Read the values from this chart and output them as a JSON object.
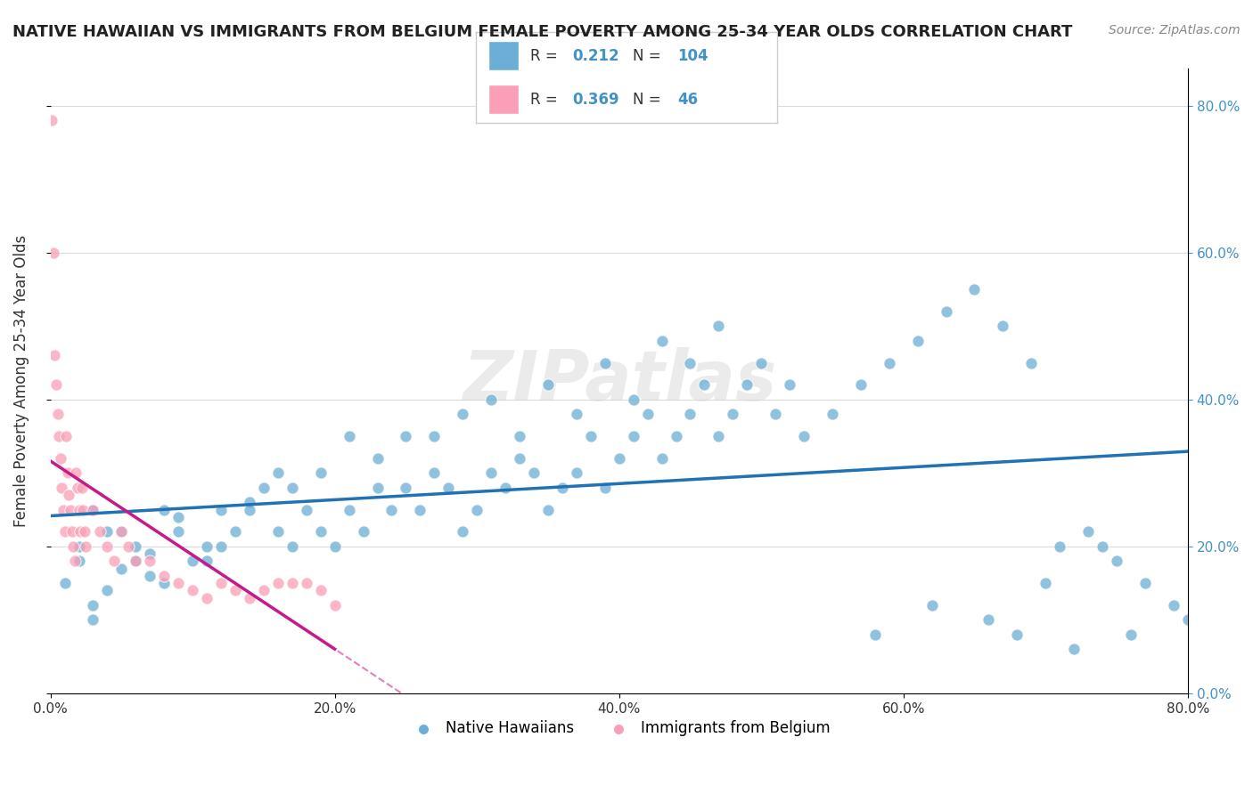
{
  "title": "NATIVE HAWAIIAN VS IMMIGRANTS FROM BELGIUM FEMALE POVERTY AMONG 25-34 YEAR OLDS CORRELATION CHART",
  "source": "Source: ZipAtlas.com",
  "ylabel": "Female Poverty Among 25-34 Year Olds",
  "xlim": [
    0.0,
    0.8
  ],
  "ylim": [
    0.0,
    0.85
  ],
  "background_color": "#ffffff",
  "watermark": "ZIPatlas",
  "blue_color": "#6baed6",
  "pink_color": "#fa9fb5",
  "blue_line_color": "#2171b5",
  "pink_line_color": "#c51b8a",
  "R_blue": 0.212,
  "N_blue": 104,
  "R_pink": 0.369,
  "N_pink": 46,
  "legend_label_blue": "Native Hawaiians",
  "legend_label_pink": "Immigrants from Belgium",
  "blue_scatter_x": [
    0.02,
    0.03,
    0.04,
    0.01,
    0.02,
    0.03,
    0.05,
    0.04,
    0.03,
    0.06,
    0.07,
    0.05,
    0.06,
    0.08,
    0.07,
    0.09,
    0.08,
    0.1,
    0.09,
    0.11,
    0.12,
    0.11,
    0.13,
    0.14,
    0.12,
    0.15,
    0.16,
    0.14,
    0.17,
    0.16,
    0.18,
    0.19,
    0.17,
    0.2,
    0.21,
    0.19,
    0.22,
    0.23,
    0.21,
    0.24,
    0.25,
    0.23,
    0.26,
    0.27,
    0.25,
    0.28,
    0.29,
    0.27,
    0.3,
    0.31,
    0.29,
    0.32,
    0.33,
    0.31,
    0.34,
    0.35,
    0.33,
    0.36,
    0.37,
    0.35,
    0.38,
    0.39,
    0.37,
    0.4,
    0.41,
    0.39,
    0.42,
    0.43,
    0.41,
    0.44,
    0.45,
    0.43,
    0.46,
    0.47,
    0.45,
    0.48,
    0.49,
    0.47,
    0.5,
    0.51,
    0.52,
    0.53,
    0.55,
    0.57,
    0.59,
    0.61,
    0.63,
    0.65,
    0.67,
    0.69,
    0.71,
    0.73,
    0.75,
    0.77,
    0.79,
    0.8,
    0.76,
    0.72,
    0.68,
    0.74,
    0.7,
    0.66,
    0.62,
    0.58
  ],
  "blue_scatter_y": [
    0.2,
    0.25,
    0.22,
    0.15,
    0.18,
    0.12,
    0.17,
    0.14,
    0.1,
    0.2,
    0.16,
    0.22,
    0.18,
    0.25,
    0.19,
    0.22,
    0.15,
    0.18,
    0.24,
    0.2,
    0.25,
    0.18,
    0.22,
    0.26,
    0.2,
    0.28,
    0.22,
    0.25,
    0.2,
    0.3,
    0.25,
    0.22,
    0.28,
    0.2,
    0.25,
    0.3,
    0.22,
    0.28,
    0.35,
    0.25,
    0.28,
    0.32,
    0.25,
    0.3,
    0.35,
    0.28,
    0.22,
    0.35,
    0.25,
    0.3,
    0.38,
    0.28,
    0.32,
    0.4,
    0.3,
    0.25,
    0.35,
    0.28,
    0.3,
    0.42,
    0.35,
    0.28,
    0.38,
    0.32,
    0.35,
    0.45,
    0.38,
    0.32,
    0.4,
    0.35,
    0.38,
    0.48,
    0.42,
    0.35,
    0.45,
    0.38,
    0.42,
    0.5,
    0.45,
    0.38,
    0.42,
    0.35,
    0.38,
    0.42,
    0.45,
    0.48,
    0.52,
    0.55,
    0.5,
    0.45,
    0.2,
    0.22,
    0.18,
    0.15,
    0.12,
    0.1,
    0.08,
    0.06,
    0.08,
    0.2,
    0.15,
    0.1,
    0.12,
    0.08
  ],
  "pink_scatter_x": [
    0.001,
    0.002,
    0.003,
    0.004,
    0.005,
    0.006,
    0.007,
    0.008,
    0.009,
    0.01,
    0.011,
    0.012,
    0.013,
    0.014,
    0.015,
    0.016,
    0.017,
    0.018,
    0.019,
    0.02,
    0.021,
    0.022,
    0.023,
    0.024,
    0.025,
    0.03,
    0.035,
    0.04,
    0.045,
    0.05,
    0.055,
    0.06,
    0.07,
    0.08,
    0.09,
    0.1,
    0.11,
    0.12,
    0.13,
    0.14,
    0.15,
    0.16,
    0.17,
    0.18,
    0.19,
    0.2
  ],
  "pink_scatter_y": [
    0.78,
    0.6,
    0.46,
    0.42,
    0.38,
    0.35,
    0.32,
    0.28,
    0.25,
    0.22,
    0.35,
    0.3,
    0.27,
    0.25,
    0.22,
    0.2,
    0.18,
    0.3,
    0.28,
    0.25,
    0.22,
    0.28,
    0.25,
    0.22,
    0.2,
    0.25,
    0.22,
    0.2,
    0.18,
    0.22,
    0.2,
    0.18,
    0.18,
    0.16,
    0.15,
    0.14,
    0.13,
    0.15,
    0.14,
    0.13,
    0.14,
    0.15,
    0.15,
    0.15,
    0.14,
    0.12
  ]
}
